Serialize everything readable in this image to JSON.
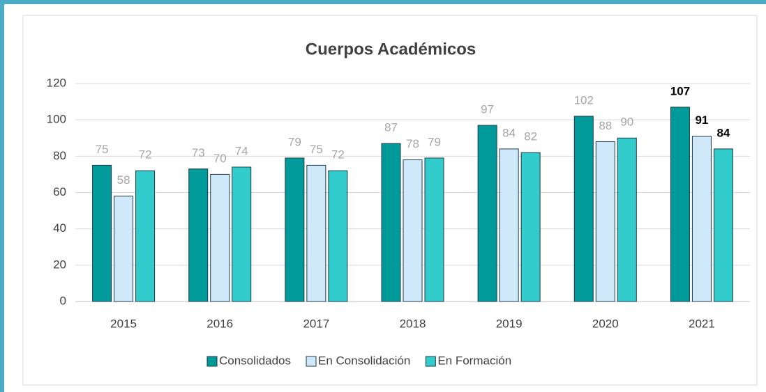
{
  "chart_data": {
    "type": "bar",
    "title": "Cuerpos Académicos",
    "categories": [
      "2015",
      "2016",
      "2017",
      "2018",
      "2019",
      "2020",
      "2021"
    ],
    "series": [
      {
        "name": "Consolidados",
        "color": "#009a9a",
        "values": [
          75,
          73,
          79,
          87,
          97,
          102,
          107
        ]
      },
      {
        "name": "En Consolidación",
        "color": "#cfe9fb",
        "values": [
          58,
          70,
          75,
          78,
          84,
          88,
          91
        ]
      },
      {
        "name": "En Formación",
        "color": "#33cccc",
        "values": [
          72,
          74,
          72,
          79,
          82,
          90,
          84
        ]
      }
    ],
    "ylim": [
      0,
      120
    ],
    "yticks": [
      0,
      20,
      40,
      60,
      80,
      100,
      120
    ],
    "grid": true,
    "legend": "bottom",
    "label_bold_last": true
  }
}
